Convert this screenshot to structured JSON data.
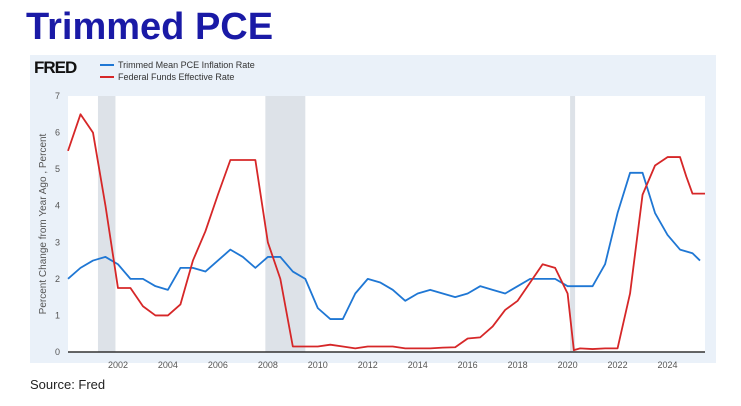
{
  "title": "Trimmed PCE",
  "source": "Source: Fred",
  "logo": "FRED",
  "chart_data": {
    "type": "line",
    "ylabel": "Percent Change from Year Ago , Percent",
    "ylim": [
      0,
      7
    ],
    "xlim": [
      2000,
      2025.5
    ],
    "yticks": [
      "0",
      "1",
      "2",
      "3",
      "4",
      "5",
      "6",
      "7"
    ],
    "xticks": [
      "2002",
      "2004",
      "2006",
      "2008",
      "2010",
      "2012",
      "2014",
      "2016",
      "2018",
      "2020",
      "2022",
      "2024"
    ],
    "recessions": [
      [
        2001.2,
        2001.9
      ],
      [
        2007.9,
        2009.5
      ],
      [
        2020.1,
        2020.3
      ]
    ],
    "legend": "top-left",
    "series": [
      {
        "name": "Trimmed Mean PCE Inflation Rate",
        "color": "#1f77d4",
        "x": [
          2000,
          2000.5,
          2001,
          2001.5,
          2002,
          2002.5,
          2003,
          2003.5,
          2004,
          2004.5,
          2005,
          2005.5,
          2006,
          2006.5,
          2007,
          2007.5,
          2008,
          2008.5,
          2009,
          2009.5,
          2010,
          2010.5,
          2011,
          2011.5,
          2012,
          2012.5,
          2013,
          2013.5,
          2014,
          2014.5,
          2015,
          2015.5,
          2016,
          2016.5,
          2017,
          2017.5,
          2018,
          2018.5,
          2019,
          2019.5,
          2020,
          2020.5,
          2021,
          2021.5,
          2022,
          2022.5,
          2023,
          2023.5,
          2024,
          2024.5,
          2025,
          2025.3
        ],
        "y": [
          2.0,
          2.3,
          2.5,
          2.6,
          2.4,
          2.0,
          2.0,
          1.8,
          1.7,
          2.3,
          2.3,
          2.2,
          2.5,
          2.8,
          2.6,
          2.3,
          2.6,
          2.6,
          2.2,
          2.0,
          1.2,
          0.9,
          0.9,
          1.6,
          2.0,
          1.9,
          1.7,
          1.4,
          1.6,
          1.7,
          1.6,
          1.5,
          1.6,
          1.8,
          1.7,
          1.6,
          1.8,
          2.0,
          2.0,
          2.0,
          1.8,
          1.8,
          1.8,
          2.4,
          3.8,
          4.9,
          4.9,
          3.8,
          3.2,
          2.8,
          2.7,
          2.5
        ]
      },
      {
        "name": "Federal Funds Effective Rate",
        "color": "#d62728",
        "x": [
          2000,
          2000.5,
          2001,
          2001.5,
          2002,
          2002.5,
          2003,
          2003.5,
          2004,
          2004.5,
          2005,
          2005.5,
          2006,
          2006.5,
          2007,
          2007.5,
          2008,
          2008.5,
          2009,
          2009.5,
          2010,
          2010.5,
          2011,
          2011.5,
          2012,
          2012.5,
          2013,
          2013.5,
          2014,
          2014.5,
          2015,
          2015.5,
          2016,
          2016.5,
          2017,
          2017.5,
          2018,
          2018.5,
          2019,
          2019.5,
          2020,
          2020.25,
          2020.5,
          2021,
          2021.5,
          2022,
          2022.5,
          2023,
          2023.5,
          2024,
          2024.5,
          2024.75,
          2025,
          2025.5
        ],
        "y": [
          5.5,
          6.5,
          6.0,
          4.0,
          1.75,
          1.75,
          1.25,
          1.0,
          1.0,
          1.3,
          2.5,
          3.3,
          4.3,
          5.25,
          5.25,
          5.25,
          3.0,
          2.0,
          0.15,
          0.15,
          0.15,
          0.2,
          0.15,
          0.1,
          0.15,
          0.15,
          0.15,
          0.1,
          0.1,
          0.1,
          0.12,
          0.13,
          0.37,
          0.4,
          0.7,
          1.15,
          1.4,
          1.9,
          2.4,
          2.3,
          1.6,
          0.05,
          0.1,
          0.08,
          0.1,
          0.1,
          1.6,
          4.3,
          5.1,
          5.33,
          5.33,
          4.8,
          4.33,
          4.33
        ]
      }
    ]
  }
}
